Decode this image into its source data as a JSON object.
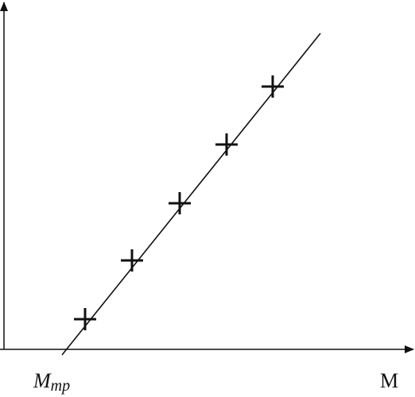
{
  "labels": {
    "origin_main": "M",
    "origin_sub": "mp",
    "x_axis": "M"
  }
}
